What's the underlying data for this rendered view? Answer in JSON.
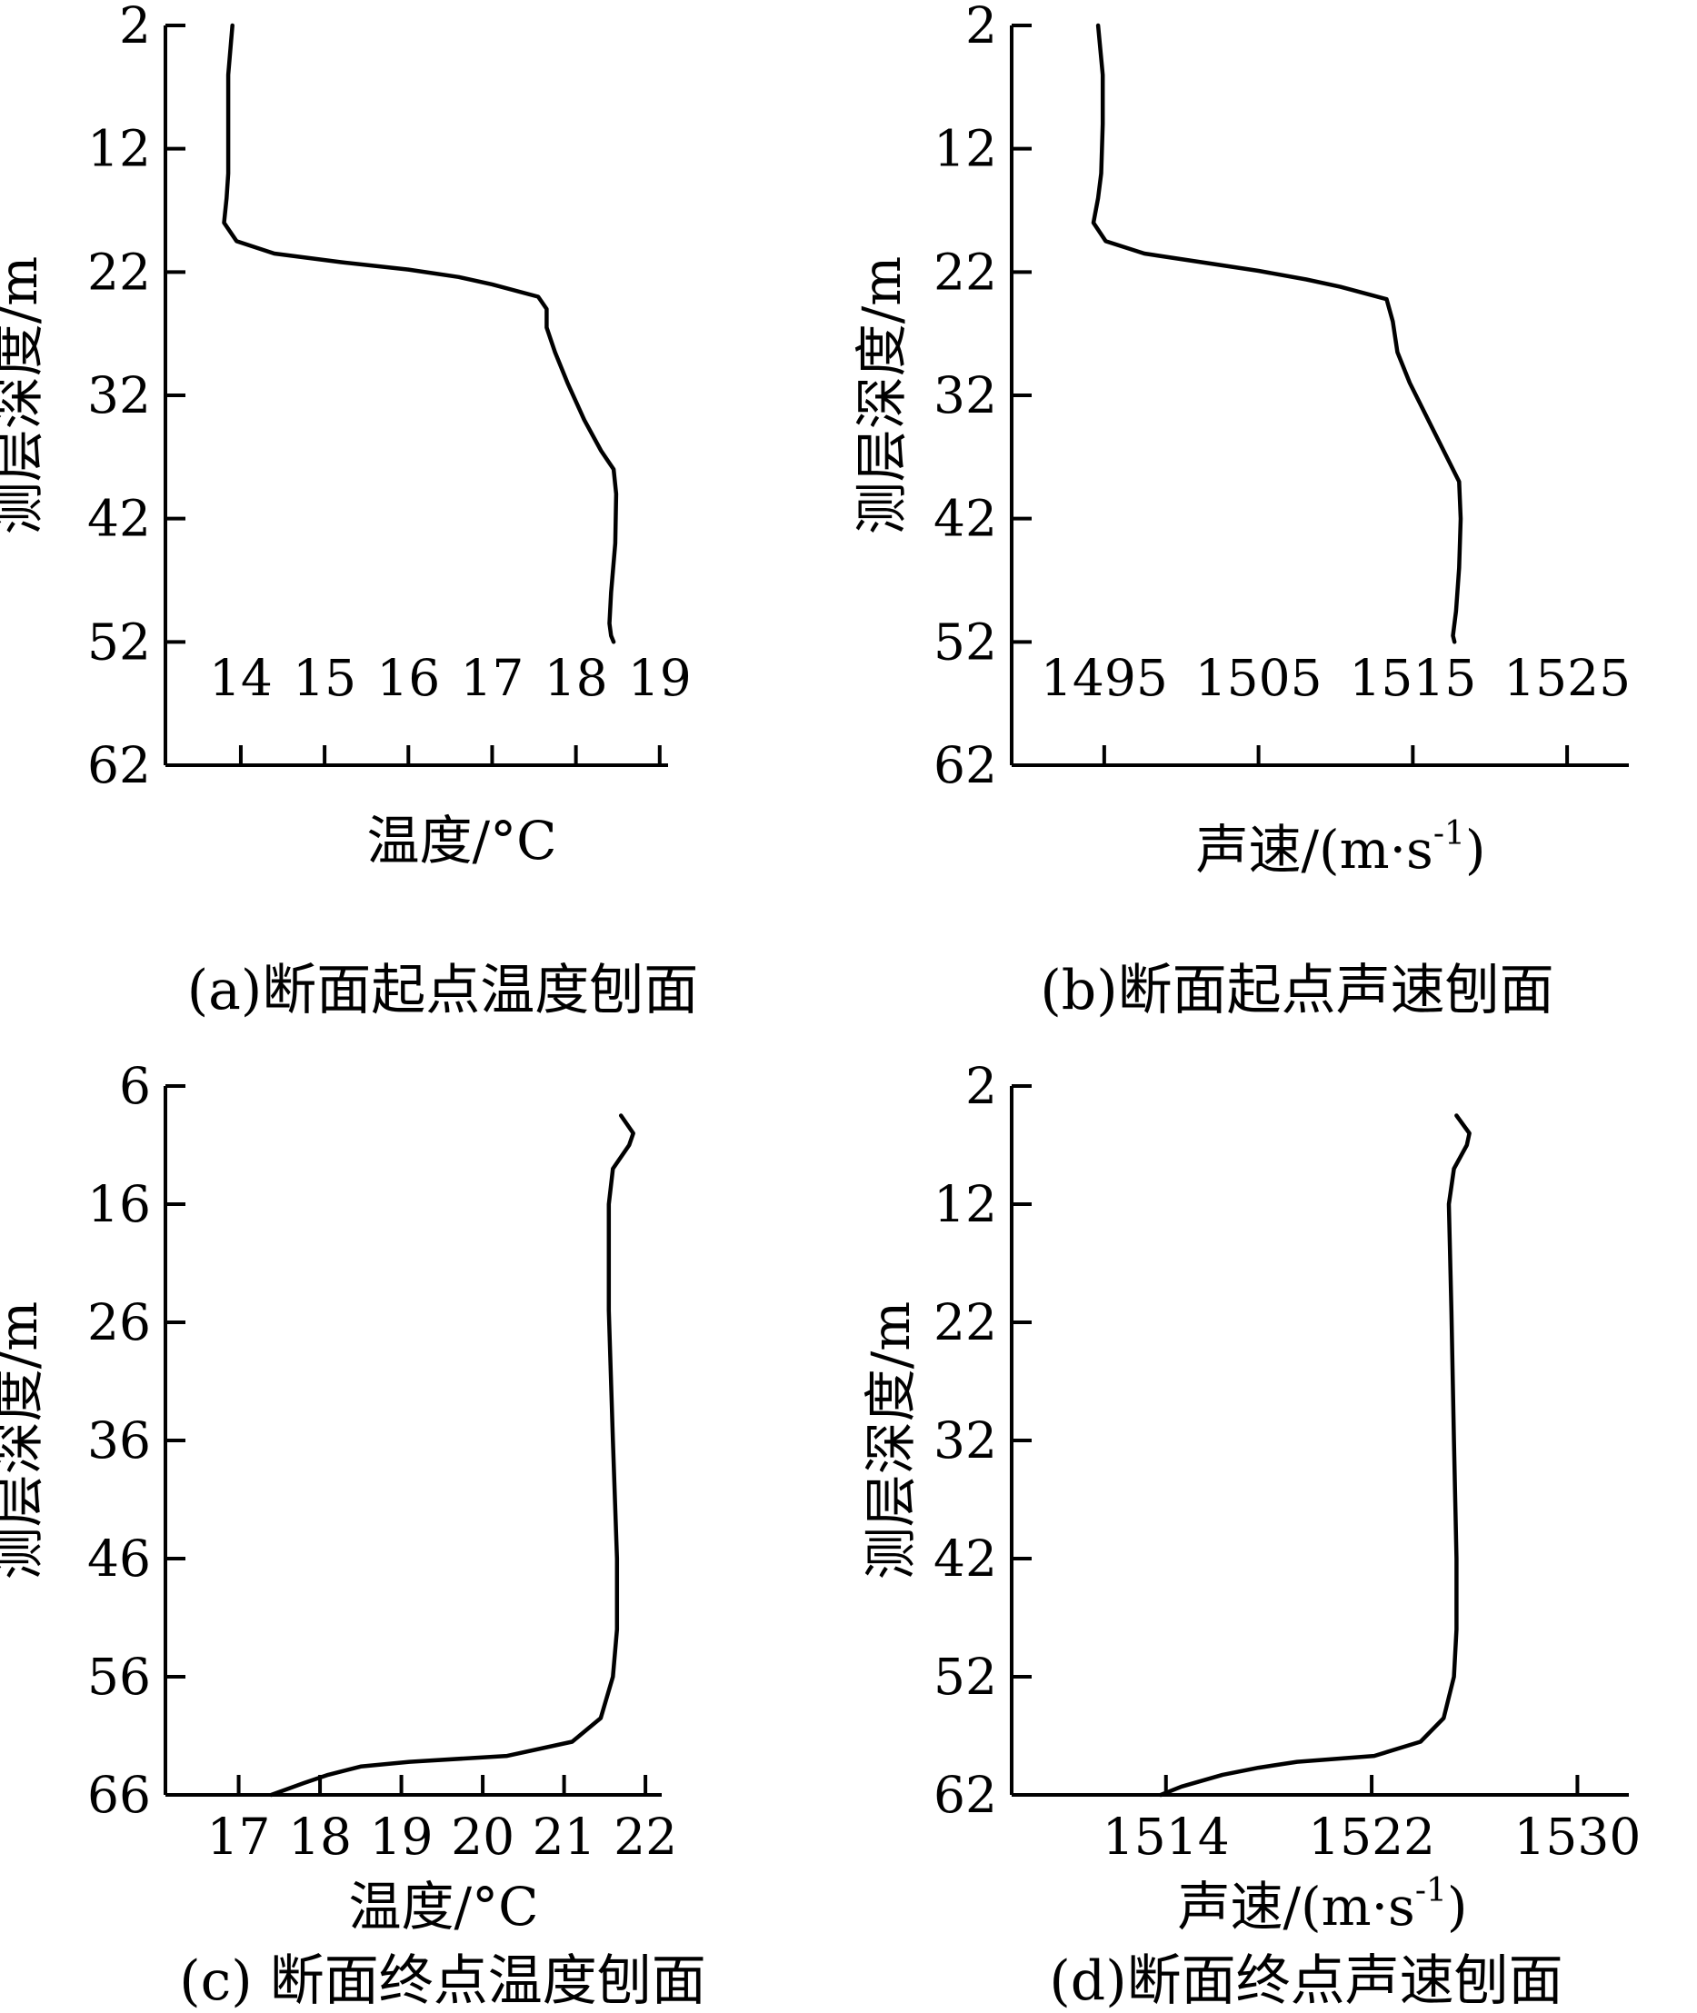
{
  "figure": {
    "panels": [
      {
        "caption": "(a)断面起点温度刨面"
      },
      {
        "caption": "(b)断面起点声速刨面"
      },
      {
        "caption": "(c) 断面终点温度刨面"
      },
      {
        "caption": "(d)断面终点声速刨面"
      }
    ]
  },
  "chart_data": [
    {
      "type": "line",
      "title": "(a)断面起点温度刨面",
      "xlabel": "温度/°C",
      "ylabel": "测层深度/m",
      "xlim": [
        13.1,
        19.1
      ],
      "ylim": [
        2,
        62
      ],
      "y_inverted": true,
      "xticks": [
        14,
        15,
        16,
        17,
        18,
        19
      ],
      "yticks": [
        2,
        12,
        22,
        32,
        42,
        52,
        62
      ],
      "series": [
        {
          "x": [
            13.9,
            13.85,
            13.85,
            13.85,
            13.83,
            13.8,
            13.95,
            14.4,
            15.2,
            16.0,
            16.6,
            17.0,
            17.55,
            17.65,
            17.65,
            17.75,
            17.9,
            18.1,
            18.3,
            18.45,
            18.48,
            18.47,
            18.42,
            18.4,
            18.42,
            18.45
          ],
          "y": [
            2,
            6,
            10,
            14,
            16,
            18,
            19.5,
            20.5,
            21.2,
            21.8,
            22.4,
            23.0,
            24.0,
            25.0,
            26.5,
            28.5,
            31.0,
            34.0,
            36.5,
            38.0,
            40.0,
            44.0,
            48.0,
            50.5,
            51.5,
            52
          ]
        }
      ]
    },
    {
      "type": "line",
      "title": "(b)断面起点声速刨面",
      "xlabel": "声速/(m·s-1)",
      "ylabel": "测层深度/m",
      "xlim": [
        1489,
        1529
      ],
      "ylim": [
        2,
        62
      ],
      "y_inverted": true,
      "xticks": [
        1495,
        1505,
        1515,
        1525
      ],
      "yticks": [
        2,
        12,
        22,
        32,
        42,
        52,
        62
      ],
      "series": [
        {
          "x": [
            1494.6,
            1494.9,
            1494.9,
            1494.8,
            1494.6,
            1494.3,
            1495.1,
            1497.6,
            1501.3,
            1505.0,
            1508.1,
            1510.3,
            1513.3,
            1513.7,
            1514.0,
            1514.8,
            1516.2,
            1517.4,
            1518.0,
            1518.1,
            1518.0,
            1517.8,
            1517.6,
            1517.7
          ],
          "y": [
            2,
            6,
            10,
            14,
            16,
            18,
            19.5,
            20.5,
            21.2,
            21.9,
            22.6,
            23.2,
            24.2,
            26.0,
            28.5,
            31.0,
            34.5,
            37.5,
            39.0,
            42.0,
            46.0,
            49.5,
            51.5,
            52
          ]
        }
      ]
    },
    {
      "type": "line",
      "title": "(c) 断面终点温度刨面",
      "xlabel": "温度/°C",
      "ylabel": "测层深度/m",
      "xlim": [
        16.1,
        22.2
      ],
      "ylim": [
        6,
        66
      ],
      "y_inverted": true,
      "xticks": [
        17,
        18,
        19,
        20,
        21,
        22
      ],
      "yticks": [
        6,
        16,
        26,
        36,
        46,
        56,
        66
      ],
      "series": [
        {
          "x": [
            21.7,
            21.85,
            21.8,
            21.6,
            21.55,
            21.55,
            21.6,
            21.65,
            21.65,
            21.6,
            21.45,
            21.1,
            20.3,
            19.1,
            18.5,
            18.1,
            17.8,
            17.4
          ],
          "y": [
            8.5,
            10,
            11,
            13,
            16,
            25,
            36,
            46,
            52,
            56,
            59.5,
            61.5,
            62.7,
            63.2,
            63.6,
            64.3,
            65.0,
            66
          ]
        }
      ]
    },
    {
      "type": "line",
      "title": "(d)断面终点声速刨面",
      "xlabel": "声速/(m·s-1)",
      "ylabel": "测层深度/m",
      "xlim": [
        1508,
        1532
      ],
      "ylim": [
        2,
        62
      ],
      "y_inverted": true,
      "xticks": [
        1514,
        1522,
        1530
      ],
      "yticks": [
        2,
        12,
        22,
        32,
        42,
        52,
        62
      ],
      "series": [
        {
          "x": [
            1525.3,
            1525.8,
            1525.7,
            1525.2,
            1525.0,
            1525.1,
            1525.2,
            1525.3,
            1525.3,
            1525.2,
            1524.8,
            1523.9,
            1522.1,
            1519.1,
            1517.6,
            1516.2,
            1514.6,
            1513.8
          ],
          "y": [
            4.5,
            6,
            7,
            9,
            12,
            21,
            32,
            42,
            48,
            52,
            55.5,
            57.5,
            58.7,
            59.2,
            59.7,
            60.3,
            61.3,
            62
          ]
        }
      ]
    }
  ]
}
